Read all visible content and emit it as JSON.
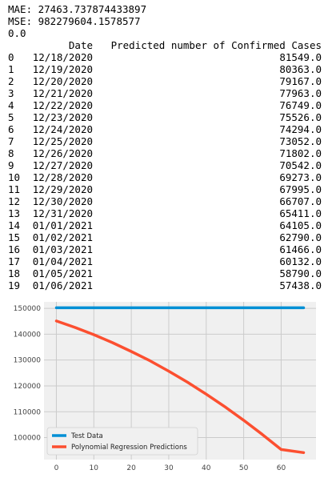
{
  "output": {
    "mae": "MAE: 27463.737874433897",
    "mse": "MSE: 982279604.1578577",
    "score": "0.0",
    "col_date": "Date",
    "col_pred": "Predicted number of Confirmed Cases",
    "rows": [
      {
        "idx": "0",
        "date": "12/18/2020",
        "value": "81549.0"
      },
      {
        "idx": "1",
        "date": "12/19/2020",
        "value": "80363.0"
      },
      {
        "idx": "2",
        "date": "12/20/2020",
        "value": "79167.0"
      },
      {
        "idx": "3",
        "date": "12/21/2020",
        "value": "77963.0"
      },
      {
        "idx": "4",
        "date": "12/22/2020",
        "value": "76749.0"
      },
      {
        "idx": "5",
        "date": "12/23/2020",
        "value": "75526.0"
      },
      {
        "idx": "6",
        "date": "12/24/2020",
        "value": "74294.0"
      },
      {
        "idx": "7",
        "date": "12/25/2020",
        "value": "73052.0"
      },
      {
        "idx": "8",
        "date": "12/26/2020",
        "value": "71802.0"
      },
      {
        "idx": "9",
        "date": "12/27/2020",
        "value": "70542.0"
      },
      {
        "idx": "10",
        "date": "12/28/2020",
        "value": "69273.0"
      },
      {
        "idx": "11",
        "date": "12/29/2020",
        "value": "67995.0"
      },
      {
        "idx": "12",
        "date": "12/30/2020",
        "value": "66707.0"
      },
      {
        "idx": "13",
        "date": "12/31/2020",
        "value": "65411.0"
      },
      {
        "idx": "14",
        "date": "01/01/2021",
        "value": "64105.0"
      },
      {
        "idx": "15",
        "date": "01/02/2021",
        "value": "62790.0"
      },
      {
        "idx": "16",
        "date": "01/03/2021",
        "value": "61466.0"
      },
      {
        "idx": "17",
        "date": "01/04/2021",
        "value": "60132.0"
      },
      {
        "idx": "18",
        "date": "01/05/2021",
        "value": "58790.0"
      },
      {
        "idx": "19",
        "date": "01/06/2021",
        "value": "57438.0"
      }
    ]
  },
  "chart_data": {
    "type": "line",
    "title": "",
    "xlabel": "",
    "ylabel": "",
    "xlim": [
      -3.3,
      69.3
    ],
    "ylim": [
      91500,
      152500
    ],
    "xticks": [
      0,
      10,
      20,
      30,
      40,
      50,
      60
    ],
    "yticks": [
      100000,
      110000,
      120000,
      130000,
      140000,
      150000
    ],
    "xtick_labels": [
      "0",
      "10",
      "20",
      "30",
      "40",
      "50",
      "60"
    ],
    "ytick_labels": [
      "100000",
      "110000",
      "120000",
      "130000",
      "140000",
      "150000"
    ],
    "grid": true,
    "legend_position": "lower-left",
    "series": [
      {
        "name": "Test Data",
        "color": "#008fd5",
        "x": [
          0,
          66
        ],
        "y": [
          150200,
          150200
        ]
      },
      {
        "name": "Polynomial Regression Predictions",
        "color": "#fc4f30",
        "x": [
          0,
          5,
          10,
          15,
          20,
          25,
          30,
          35,
          40,
          45,
          50,
          55,
          60,
          66
        ],
        "y": [
          145100,
          142600,
          139800,
          136700,
          133300,
          129700,
          125700,
          121400,
          116800,
          111900,
          106700,
          101200,
          95400,
          94200
        ]
      }
    ]
  }
}
